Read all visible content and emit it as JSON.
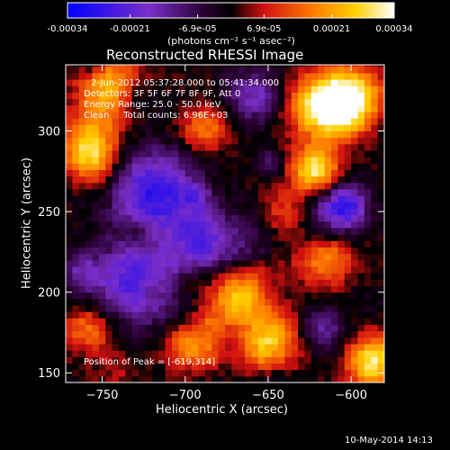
{
  "chart_data": {
    "type": "heatmap",
    "title": "Reconstructed RHESSI Image",
    "xlabel": "Heliocentric X (arcsec)",
    "ylabel": "Heliocentric Y (arcsec)",
    "xlim": [
      -772,
      -580
    ],
    "ylim": [
      144,
      341
    ],
    "xticks": [
      -750,
      -700,
      -650,
      -600
    ],
    "yticks": [
      150,
      200,
      250,
      300
    ],
    "colorbar": {
      "min": -0.00034,
      "max": 0.00034,
      "ticks": [
        "-0.00034",
        "-0.00021",
        "-6.9e-05",
        "6.9e-05",
        "0.00021",
        "0.00034"
      ],
      "tick_values": [
        -0.00034,
        -0.00021,
        -6.9e-05,
        6.9e-05,
        0.00021,
        0.00034
      ],
      "label": "(photons cm⁻² s⁻¹ asec⁻²)",
      "colors": [
        "#0000ff",
        "#7a2ec8",
        "#2a0030",
        "#000000",
        "#d01010",
        "#ff7a00",
        "#ffd000",
        "#ffffff"
      ]
    },
    "annotations": [
      "2-Jun-2012 05:37:28.000 to 05:41:34.000",
      "Detectors: 3F 5F 6F 7F 8F 9F, Att 0",
      "Energy Range: 25.0 - 50.0 keV",
      "Clean     Total counts: 6.96E+03"
    ],
    "peak_label": "Position of Peak = [-619,314]",
    "peak_position": [
      -619,
      314
    ],
    "grid": false
  },
  "footer": {
    "date": "10-May-2014 14:13"
  }
}
